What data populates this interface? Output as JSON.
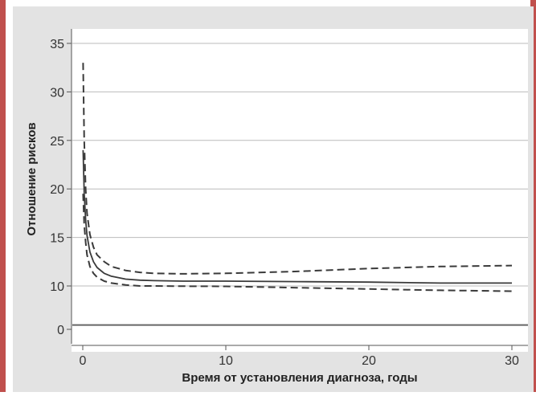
{
  "chart_data": {
    "type": "line",
    "title": "",
    "xlabel": "Время от установления диагноза, годы",
    "ylabel": "Отношение рисков",
    "xlim": [
      -0.5,
      30.5
    ],
    "xticks": [
      0,
      10,
      20,
      30
    ],
    "xtick_labels": [
      "0",
      "10",
      "20",
      "30"
    ],
    "yticks": [
      0,
      10,
      15,
      20,
      25,
      30,
      35
    ],
    "ytick_labels": [
      "0",
      "10",
      "15",
      "20",
      "25",
      "30",
      "35"
    ],
    "y_axis_break": "between 0 and 10",
    "grid": "horizontal",
    "legend": "none",
    "reference_line": {
      "y": 1,
      "style": "solid"
    },
    "series": [
      {
        "style": "solid",
        "x": [
          0.02,
          0.1,
          0.2,
          0.3,
          0.5,
          0.75,
          1,
          1.5,
          2,
          3,
          4,
          5,
          7,
          10,
          15,
          20,
          25,
          30
        ],
        "values": [
          24.0,
          19.5,
          16.8,
          15.2,
          13.5,
          12.5,
          11.9,
          11.3,
          11.0,
          10.7,
          10.6,
          10.55,
          10.5,
          10.5,
          10.45,
          10.4,
          10.3,
          10.3
        ]
      },
      {
        "style": "dashed",
        "x": [
          0.02,
          0.1,
          0.2,
          0.3,
          0.5,
          0.75,
          1,
          1.5,
          2,
          3,
          4,
          5,
          7,
          10,
          15,
          20,
          25,
          30
        ],
        "values": [
          33.0,
          25.0,
          20.0,
          17.5,
          15.3,
          14.0,
          13.2,
          12.5,
          12.0,
          11.6,
          11.4,
          11.3,
          11.25,
          11.3,
          11.5,
          11.8,
          12.0,
          12.1
        ]
      },
      {
        "style": "dashed",
        "x": [
          0.02,
          0.1,
          0.2,
          0.3,
          0.5,
          0.75,
          1,
          1.5,
          2,
          3,
          4,
          5,
          7,
          10,
          15,
          20,
          25,
          30
        ],
        "values": [
          19.5,
          16.3,
          14.5,
          13.2,
          12.0,
          11.3,
          10.9,
          10.5,
          10.3,
          10.1,
          10.0,
          10.0,
          9.95,
          9.9,
          9.6,
          9.3,
          9.0,
          8.8
        ]
      }
    ],
    "colors": {
      "background": "#e3e3e3",
      "plot_background": "#ffffff",
      "grid": "#bbbbbb",
      "line": "#3a3a3a",
      "border": "#c0504d"
    }
  }
}
